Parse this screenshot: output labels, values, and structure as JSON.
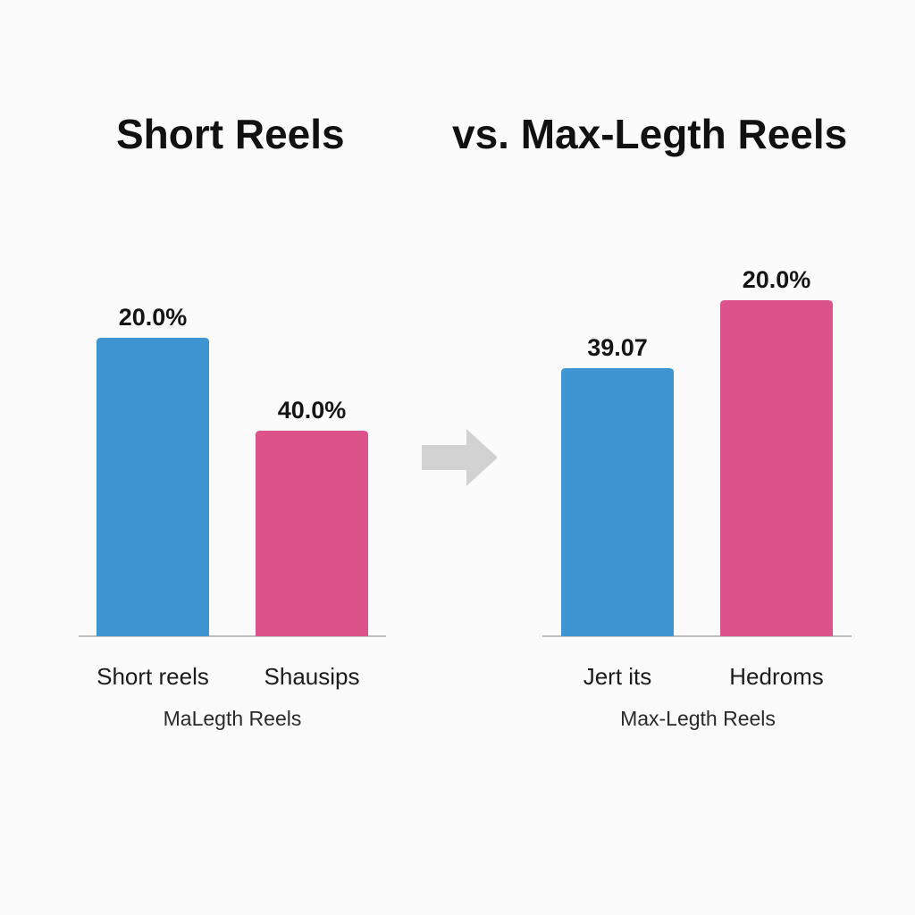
{
  "titles": {
    "left": "Short Reels",
    "right": "vs. Max-Legth Reels"
  },
  "colors": {
    "blue": "#3f95d2",
    "pink": "#dc528a",
    "arrow": "#d2d2d2",
    "axis": "#bdbdbd"
  },
  "chart_data": [
    {
      "type": "bar",
      "title": "Short Reels",
      "categories": [
        "Short reels",
        "Shausips"
      ],
      "values": [
        20.0,
        40.0
      ],
      "value_labels": [
        "20.0%",
        "40.0%"
      ],
      "group_label": "MaLegth Reels",
      "bar_colors": [
        "#3f95d2",
        "#dc528a"
      ]
    },
    {
      "type": "bar",
      "title": "vs. Max-Legth Reels",
      "categories": [
        "Jert its",
        "Hedroms"
      ],
      "values": [
        39.07,
        20.0
      ],
      "value_labels": [
        "39.07",
        "20.0%"
      ],
      "group_label": "Max-Legth Reels",
      "bar_colors": [
        "#3f95d2",
        "#dc528a"
      ]
    }
  ],
  "arrow": {
    "icon": "arrow-right-icon"
  }
}
